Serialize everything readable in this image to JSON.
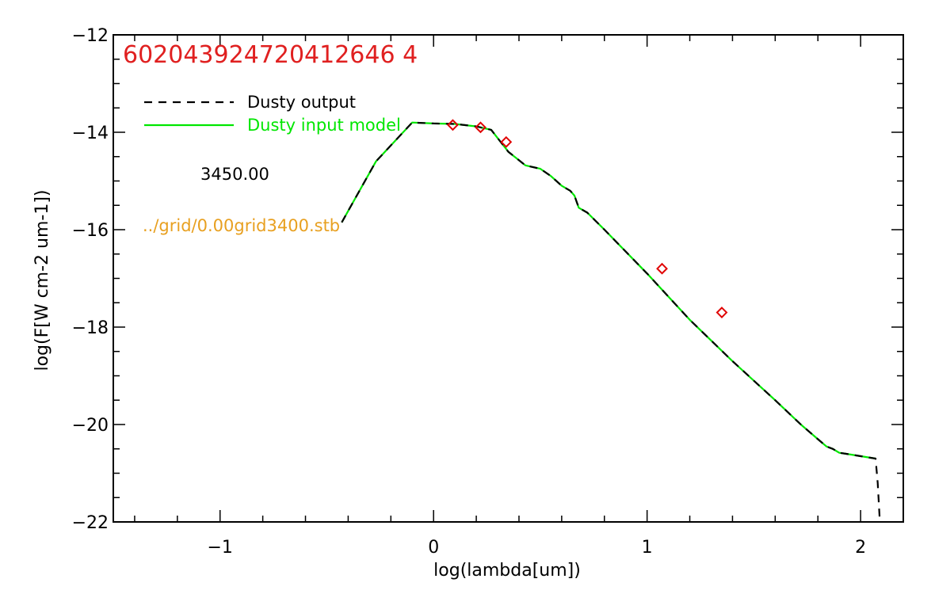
{
  "chart_data": {
    "type": "line",
    "title": "602043924720412646 4",
    "xlabel": "log(lambda[um])",
    "ylabel": "log(F[W cm-2 um-1])",
    "xlim": [
      -1.5,
      2.2
    ],
    "ylim": [
      -22,
      -12
    ],
    "xticks": [
      {
        "value": -1,
        "label": "−1"
      },
      {
        "value": 0,
        "label": "0"
      },
      {
        "value": 1,
        "label": "1"
      },
      {
        "value": 2,
        "label": "2"
      }
    ],
    "yticks": [
      {
        "value": -12,
        "label": "−12"
      },
      {
        "value": -14,
        "label": "−14"
      },
      {
        "value": -16,
        "label": "−16"
      },
      {
        "value": -18,
        "label": "−18"
      },
      {
        "value": -20,
        "label": "−20"
      },
      {
        "value": -22,
        "label": "−22"
      }
    ],
    "legend_placement": "top-left",
    "series": [
      {
        "name": "Dusty output",
        "color": "#000000",
        "style": "dashed",
        "x": [
          -0.43,
          -0.27,
          -0.1,
          0.0,
          0.1,
          0.2,
          0.27,
          0.35,
          0.43,
          0.5,
          0.55,
          0.6,
          0.64,
          0.66,
          0.68,
          0.72,
          0.8,
          1.0,
          1.2,
          1.4,
          1.6,
          1.72,
          1.8,
          1.84,
          1.87,
          1.9,
          1.93,
          2.07,
          2.08,
          2.09
        ],
        "y": [
          -15.85,
          -14.6,
          -13.8,
          -13.82,
          -13.83,
          -13.88,
          -13.95,
          -14.4,
          -14.68,
          -14.75,
          -14.9,
          -15.1,
          -15.2,
          -15.3,
          -15.55,
          -15.65,
          -16.0,
          -16.9,
          -17.85,
          -18.7,
          -19.5,
          -20.0,
          -20.3,
          -20.45,
          -20.5,
          -20.58,
          -20.6,
          -20.7,
          -21.2,
          -22.0
        ]
      },
      {
        "name": "Dusty input model",
        "color": "#00e600",
        "style": "solid",
        "x": [
          -0.43,
          -0.27,
          -0.1,
          0.0,
          0.1,
          0.2,
          0.27,
          0.35,
          0.43,
          0.5,
          0.55,
          0.6,
          0.64,
          0.66,
          0.68,
          0.72,
          0.8,
          1.0,
          1.2,
          1.4,
          1.6,
          1.72,
          1.8,
          1.84,
          1.87,
          1.9,
          1.93,
          2.07
        ],
        "y": [
          -15.85,
          -14.6,
          -13.8,
          -13.82,
          -13.83,
          -13.88,
          -13.95,
          -14.4,
          -14.68,
          -14.75,
          -14.9,
          -15.1,
          -15.2,
          -15.3,
          -15.55,
          -15.65,
          -16.0,
          -16.9,
          -17.85,
          -18.7,
          -19.5,
          -20.0,
          -20.3,
          -20.45,
          -20.5,
          -20.58,
          -20.6,
          -20.7
        ]
      }
    ],
    "points": {
      "color": "#e00000",
      "marker": "diamond",
      "x": [
        0.09,
        0.22,
        0.34,
        1.07,
        1.35
      ],
      "y": [
        -13.85,
        -13.9,
        -14.2,
        -16.8,
        -17.7
      ]
    },
    "annotations": [
      {
        "text": "3450.00",
        "color": "#000000"
      },
      {
        "text": "../grid/0.00grid3400.stb",
        "color": "#e8a020"
      }
    ],
    "colors": {
      "title": "#e02020",
      "axes": "#000000",
      "annotation_path": "#e8a020"
    }
  }
}
